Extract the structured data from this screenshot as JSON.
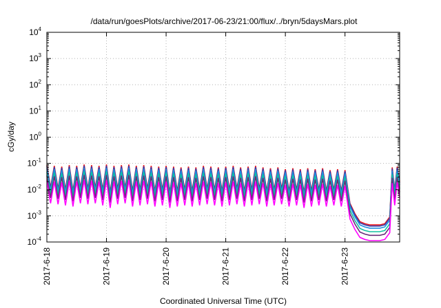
{
  "chart_data": {
    "type": "line",
    "title": "/data/run/goesPlots/archive/2017-06-23/21:00/flux/../bryn/5daysMars.plot",
    "xlabel": "Coordinated Universal Time (UTC)",
    "ylabel": "cGy/day",
    "yscale": "log",
    "ylim": [
      0.0001,
      10000
    ],
    "xlim": [
      "2017-06-18 00:00",
      "2017-06-23 22:00"
    ],
    "grid": true,
    "legend": "none",
    "x_ticks": [
      "2017-6-18",
      "2017-6-19",
      "2017-6-20",
      "2017-6-21",
      "2017-6-22",
      "2017-6-23"
    ],
    "y_ticks": [
      {
        "base": "10",
        "exp": "-4",
        "value": 0.0001
      },
      {
        "base": "10",
        "exp": "-3",
        "value": 0.001
      },
      {
        "base": "10",
        "exp": "-2",
        "value": 0.01
      },
      {
        "base": "10",
        "exp": "-1",
        "value": 0.1
      },
      {
        "base": "10",
        "exp": "0",
        "value": 1
      },
      {
        "base": "10",
        "exp": "1",
        "value": 10
      },
      {
        "base": "10",
        "exp": "2",
        "value": 100
      },
      {
        "base": "10",
        "exp": "3",
        "value": 1000
      },
      {
        "base": "10",
        "exp": "4",
        "value": 10000
      }
    ],
    "series": [
      {
        "color": "#e8141a",
        "x": [
          "2017-06-18 00:00",
          "2017-06-18 01:30",
          "2017-06-18 03:00",
          "2017-06-18 04:30",
          "2017-06-18 06:00",
          "2017-06-18 07:30",
          "2017-06-18 09:00",
          "2017-06-18 10:30",
          "2017-06-18 12:00",
          "2017-06-18 13:30",
          "2017-06-18 15:00",
          "2017-06-18 16:30",
          "2017-06-18 18:00",
          "2017-06-18 19:30",
          "2017-06-18 21:00",
          "2017-06-18 22:30",
          "2017-06-19 00:00",
          "2017-06-19 01:30",
          "2017-06-19 03:00",
          "2017-06-19 04:30",
          "2017-06-19 06:00",
          "2017-06-19 07:30",
          "2017-06-19 09:00",
          "2017-06-19 10:30",
          "2017-06-19 12:00",
          "2017-06-19 13:30",
          "2017-06-19 15:00",
          "2017-06-19 16:30",
          "2017-06-19 18:00",
          "2017-06-19 19:30",
          "2017-06-19 21:00",
          "2017-06-19 22:30",
          "2017-06-20 00:00",
          "2017-06-20 01:30",
          "2017-06-20 03:00",
          "2017-06-20 04:30",
          "2017-06-20 06:00",
          "2017-06-20 07:30",
          "2017-06-20 09:00",
          "2017-06-20 10:30",
          "2017-06-20 12:00",
          "2017-06-20 13:30",
          "2017-06-20 15:00",
          "2017-06-20 16:30",
          "2017-06-20 18:00",
          "2017-06-20 19:30",
          "2017-06-20 21:00",
          "2017-06-20 22:30",
          "2017-06-21 00:00",
          "2017-06-21 01:30",
          "2017-06-21 03:00",
          "2017-06-21 04:30",
          "2017-06-21 06:00",
          "2017-06-21 07:30",
          "2017-06-21 09:00",
          "2017-06-21 10:30",
          "2017-06-21 12:00",
          "2017-06-21 13:30",
          "2017-06-21 15:00",
          "2017-06-21 16:30",
          "2017-06-21 18:00",
          "2017-06-21 19:30",
          "2017-06-21 21:00",
          "2017-06-21 22:30",
          "2017-06-22 00:00",
          "2017-06-22 01:30",
          "2017-06-22 03:00",
          "2017-06-22 04:30",
          "2017-06-22 06:00",
          "2017-06-22 07:30",
          "2017-06-22 09:00",
          "2017-06-22 10:30",
          "2017-06-22 12:00",
          "2017-06-22 13:30",
          "2017-06-22 15:00",
          "2017-06-22 16:30",
          "2017-06-22 18:00",
          "2017-06-22 19:30",
          "2017-06-22 21:00",
          "2017-06-22 22:30",
          "2017-06-23 00:00",
          "2017-06-23 02:00",
          "2017-06-23 04:00",
          "2017-06-23 06:00",
          "2017-06-23 08:00",
          "2017-06-23 10:00",
          "2017-06-23 12:00",
          "2017-06-23 14:00",
          "2017-06-23 16:00",
          "2017-06-23 18:00",
          "2017-06-23 19:00",
          "2017-06-23 20:00",
          "2017-06-23 21:00",
          "2017-06-23 22:00"
        ],
        "y": [
          0.085,
          0.012,
          0.08,
          0.011,
          0.075,
          0.01,
          0.085,
          0.009,
          0.08,
          0.012,
          0.09,
          0.011,
          0.085,
          0.012,
          0.08,
          0.01,
          0.09,
          0.008,
          0.08,
          0.011,
          0.085,
          0.012,
          0.09,
          0.009,
          0.08,
          0.01,
          0.085,
          0.011,
          0.08,
          0.009,
          0.075,
          0.01,
          0.08,
          0.008,
          0.075,
          0.009,
          0.07,
          0.01,
          0.075,
          0.009,
          0.07,
          0.01,
          0.08,
          0.011,
          0.075,
          0.01,
          0.07,
          0.009,
          0.075,
          0.01,
          0.08,
          0.011,
          0.07,
          0.009,
          0.075,
          0.01,
          0.08,
          0.011,
          0.07,
          0.009,
          0.065,
          0.01,
          0.07,
          0.011,
          0.06,
          0.009,
          0.065,
          0.01,
          0.06,
          0.008,
          0.065,
          0.009,
          0.06,
          0.01,
          0.065,
          0.009,
          0.055,
          0.01,
          0.06,
          0.009,
          0.055,
          0.003,
          0.0012,
          0.0006,
          0.0005,
          0.00045,
          0.00045,
          0.00045,
          0.0005,
          0.0009,
          0.07,
          0.01,
          0.075,
          0.02
        ]
      },
      {
        "color": "#3a3aa8",
        "factor": 0.9
      },
      {
        "color": "#1e8fe0",
        "factor": 0.75
      },
      {
        "color": "#10c0a0",
        "factor": 0.55
      },
      {
        "color": "#6a2a7a",
        "factor": 0.4
      },
      {
        "color": "#ff00ff",
        "factor": 0.25
      }
    ]
  }
}
